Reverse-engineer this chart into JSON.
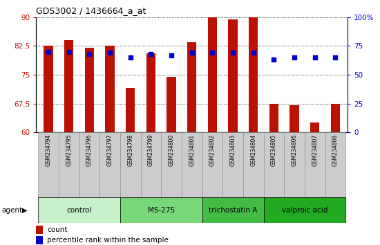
{
  "title": "GDS3002 / 1436664_a_at",
  "samples": [
    "GSM234794",
    "GSM234795",
    "GSM234796",
    "GSM234797",
    "GSM234798",
    "GSM234799",
    "GSM234800",
    "GSM234801",
    "GSM234802",
    "GSM234803",
    "GSM234804",
    "GSM234805",
    "GSM234806",
    "GSM234807",
    "GSM234808"
  ],
  "counts": [
    82.5,
    84.0,
    82.0,
    82.5,
    71.5,
    80.5,
    74.5,
    83.5,
    90.0,
    89.5,
    90.0,
    67.5,
    67.0,
    62.5,
    67.5
  ],
  "percentile": [
    70,
    70,
    68,
    69,
    65,
    68,
    67,
    69,
    69,
    69,
    69,
    63,
    65,
    65,
    65
  ],
  "groups": [
    {
      "label": "control",
      "start": 0,
      "end": 4,
      "color": "#c8f0c8"
    },
    {
      "label": "MS-275",
      "start": 4,
      "end": 8,
      "color": "#78d878"
    },
    {
      "label": "trichostatin A",
      "start": 8,
      "end": 11,
      "color": "#44bb44"
    },
    {
      "label": "valproic acid",
      "start": 11,
      "end": 15,
      "color": "#22aa22"
    }
  ],
  "ylim_left": [
    60,
    90
  ],
  "ylim_right": [
    0,
    100
  ],
  "yticks_left": [
    60,
    67.5,
    75,
    82.5,
    90
  ],
  "yticks_right": [
    0,
    25,
    50,
    75,
    100
  ],
  "bar_color": "#bb1100",
  "dot_color": "#0000cc",
  "bar_width": 0.45,
  "tick_box_color": "#cccccc",
  "background_color": "#ffffff"
}
